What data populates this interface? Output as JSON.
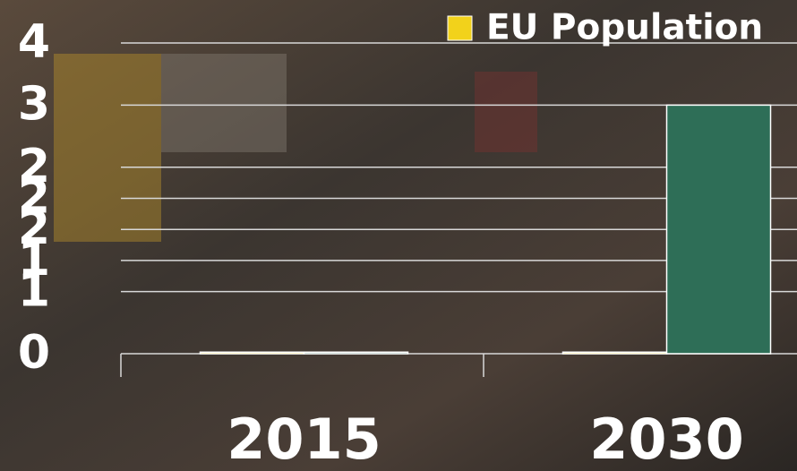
{
  "chart_data": {
    "type": "bar",
    "categories": [
      "2015",
      "2030"
    ],
    "series": [
      {
        "name": "EU Population",
        "color": "#f2d21b",
        "values": [
          0.02,
          0.02
        ]
      },
      {
        "color": "#2e6e57",
        "values": [
          0.02,
          3.2
        ]
      }
    ],
    "ylim": [
      0,
      4
    ],
    "yticks": [
      0,
      {
        "value": 0.8,
        "label": "1"
      },
      {
        "value": 1.2,
        "label": "1"
      },
      {
        "value": 1.6,
        "label": "2"
      },
      {
        "value": 2,
        "label": "2"
      },
      {
        "value": 2.4,
        "label": "2"
      },
      {
        "value": 3.2,
        "label": "3"
      },
      4
    ],
    "grid": true
  }
}
